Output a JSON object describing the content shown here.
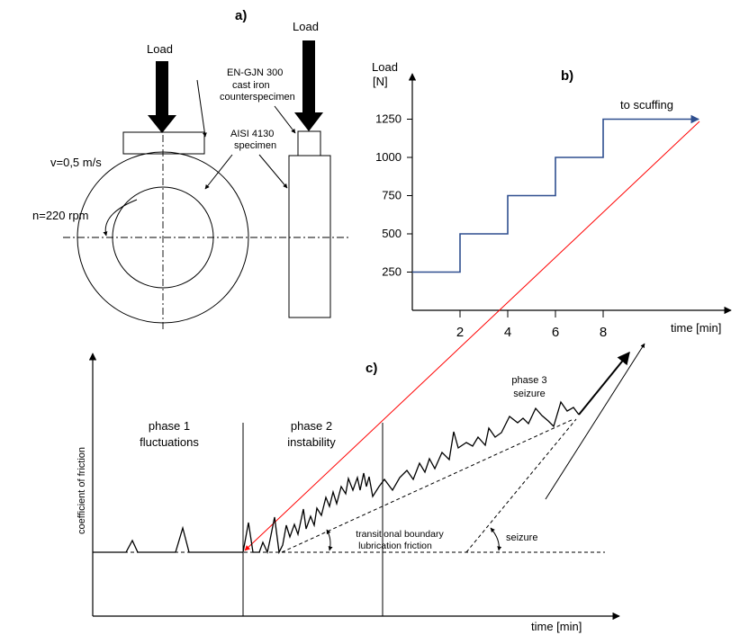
{
  "panel_a": {
    "label": "a)",
    "load_left": "Load",
    "load_right": "Load",
    "counterspecimen_line1": "EN-GJN 300",
    "counterspecimen_line2": "cast iron",
    "counterspecimen_line3": "counterspecimen",
    "specimen_line1": "AISI 4130",
    "specimen_line2": "specimen",
    "velocity": "v=0,5 m/s",
    "rpm": "n=220 rpm"
  },
  "panel_b": {
    "label": "b)",
    "ylabel_line1": "Load",
    "ylabel_line2": "[N]",
    "xlabel": "time [min]",
    "annotation": "to scuffing",
    "colors": {
      "step_line": "#2f4f8f",
      "diagonal": "#ff0000"
    }
  },
  "panel_c": {
    "label": "c)",
    "ylabel": "coefficient of friction",
    "xlabel": "time [min]",
    "phase1_line1": "phase 1",
    "phase1_line2": "fluctuations",
    "phase2_line1": "phase 2",
    "phase2_line2": "instability",
    "phase3_line1": "phase 3",
    "phase3_line2": "seizure",
    "transitional_line1": "transitional boundary",
    "transitional_line2": "lubrication friction",
    "seizure": "seizure"
  },
  "chart_data": {
    "type": "line",
    "title": "",
    "xlabel": "time [min]",
    "ylabel": "Load [N]",
    "x_ticks": [
      "2",
      "4",
      "6",
      "8"
    ],
    "y_ticks": [
      "250",
      "500",
      "750",
      "1000",
      "1250"
    ],
    "series": [
      {
        "x": [
          0,
          2,
          2,
          4,
          4,
          6,
          6,
          8,
          8,
          12
        ],
        "values": [
          250,
          250,
          500,
          500,
          750,
          750,
          1000,
          1000,
          1250,
          1250
        ]
      }
    ],
    "xlim": [
      0,
      12
    ],
    "ylim": [
      0,
      1500
    ]
  }
}
